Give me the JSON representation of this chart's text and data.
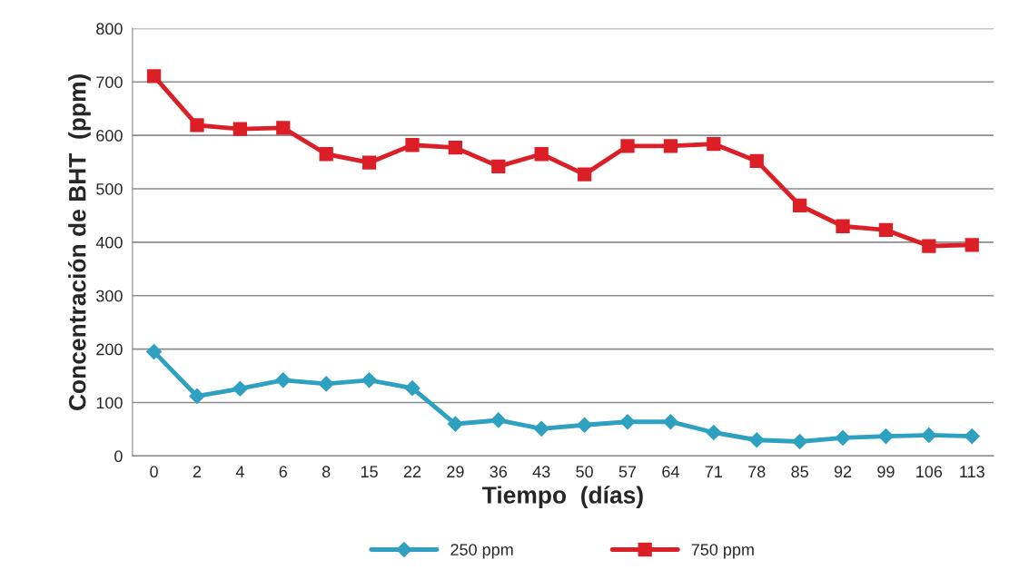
{
  "chart_data": {
    "type": "line",
    "xlabel": "Tiempo  (días)",
    "ylabel": "Concentración de BHT  (ppm)",
    "categories": [
      "0",
      "2",
      "4",
      "6",
      "8",
      "15",
      "22",
      "29",
      "36",
      "43",
      "50",
      "57",
      "64",
      "71",
      "78",
      "85",
      "92",
      "99",
      "106",
      "113"
    ],
    "series": [
      {
        "name": "250 ppm",
        "color": "#2ea1c1",
        "marker": "diamond",
        "values": [
          195,
          112,
          126,
          142,
          135,
          142,
          127,
          60,
          67,
          51,
          58,
          64,
          64,
          44,
          30,
          27,
          34,
          37,
          39,
          37
        ]
      },
      {
        "name": "750 ppm",
        "color": "#dc1f26",
        "marker": "square",
        "values": [
          711,
          619,
          612,
          614,
          565,
          549,
          582,
          577,
          542,
          565,
          527,
          580,
          580,
          584,
          552,
          469,
          430,
          423,
          393,
          395
        ]
      }
    ],
    "ylim": [
      0,
      800
    ],
    "yticks": [
      0,
      100,
      200,
      300,
      400,
      500,
      600,
      700,
      800
    ],
    "grid": "y",
    "legend": "bottom"
  }
}
